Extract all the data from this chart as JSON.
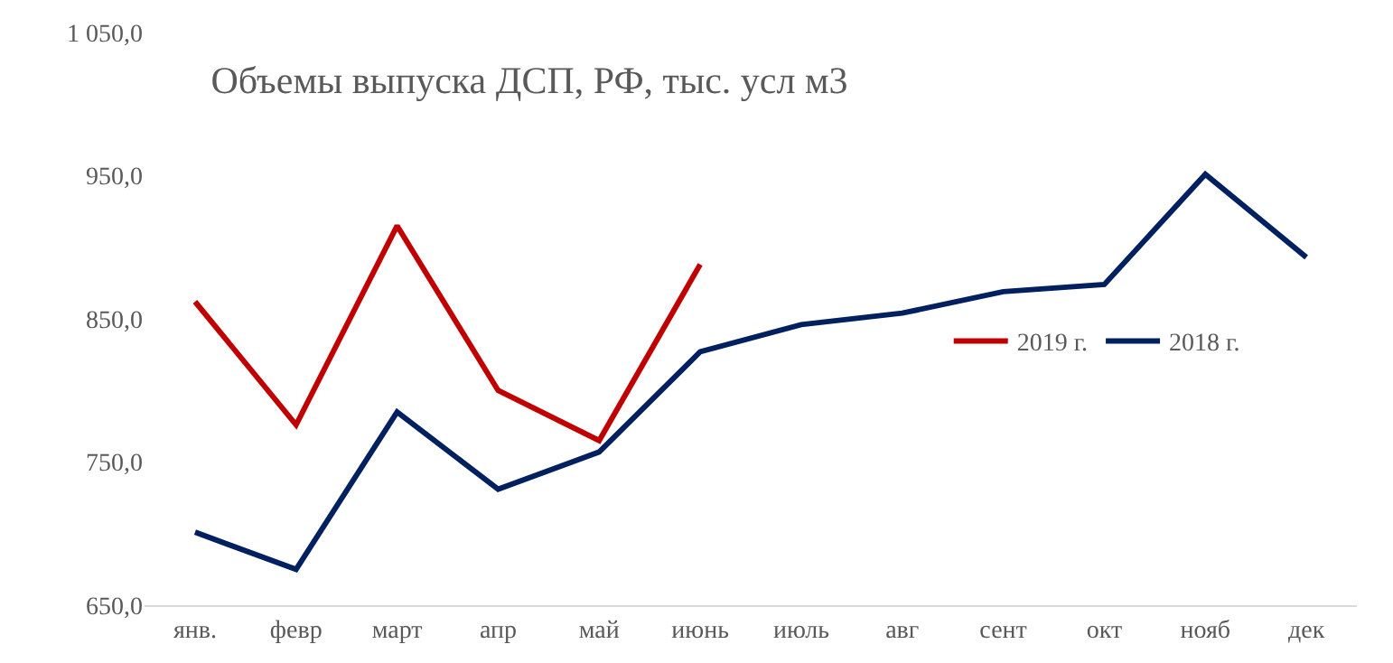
{
  "chart_data": {
    "type": "line",
    "title": "Объемы выпуска ДСП, РФ, тыс. усл м3",
    "categories": [
      "янв.",
      "февр",
      "март",
      "апр",
      "май",
      "июнь",
      "июль",
      "авг",
      "сент",
      "окт",
      "нояб",
      "дек"
    ],
    "series": [
      {
        "name": "2019 г.",
        "color": "#c00000",
        "values": [
          862,
          776,
          915,
          800,
          765,
          888,
          null,
          null,
          null,
          null,
          null,
          null
        ]
      },
      {
        "name": "2018 г.",
        "color": "#002060",
        "values": [
          701,
          675,
          785,
          731,
          757,
          827,
          846,
          854,
          869,
          874,
          951,
          893
        ]
      }
    ],
    "ylim": [
      650,
      1050
    ],
    "yticks": [
      {
        "value": 650,
        "label": "650,0"
      },
      {
        "value": 750,
        "label": "750,0"
      },
      {
        "value": 850,
        "label": "850,0"
      },
      {
        "value": 950,
        "label": "950,0"
      },
      {
        "value": 1050,
        "label": "1 050,0"
      }
    ],
    "grid": false,
    "legend": "right",
    "marker": "none",
    "line_style": "solid"
  }
}
